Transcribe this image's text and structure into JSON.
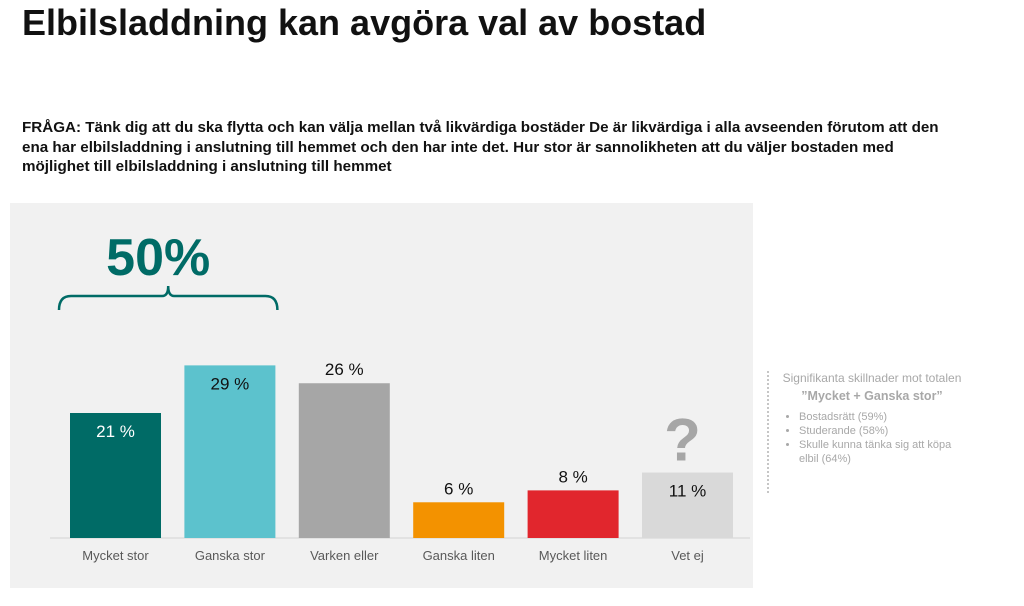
{
  "title": "Elbilsladdning kan avgöra val av bostad",
  "question": "FRÅGA: Tänk dig att du ska flytta och kan välja mellan två likvärdiga bostäder De är likvärdiga i alla avseenden förutom att den ena har elbilsladdning i anslutning till hemmet och den har inte det. Hur stor är sannolikheten att du väljer bostaden med möjlighet till elbilsladdning i anslutning till hemmet",
  "chart_data": {
    "type": "bar",
    "categories": [
      "Mycket stor",
      "Ganska stor",
      "Varken eller",
      "Ganska liten",
      "Mycket liten",
      "Vet ej"
    ],
    "values": [
      21,
      29,
      26,
      6,
      8,
      11
    ],
    "value_labels": [
      "21 %",
      "29 %",
      "26 %",
      "6 %",
      "8 %",
      "11 %"
    ],
    "colors": [
      "#006b66",
      "#5cc2cd",
      "#a6a6a6",
      "#f39200",
      "#e1262d",
      "#d9d9d9"
    ],
    "label_colors": [
      "#ffffff",
      "#111111",
      "#111111",
      "#111111",
      "#111111",
      "#111111"
    ],
    "ylim": [
      0,
      31
    ],
    "grid": false,
    "annotations": {
      "bracket_total": "50%",
      "bracket_color": "#006b66",
      "bracket_covers": [
        "Mycket stor",
        "Ganska stor"
      ],
      "question_mark": "?",
      "question_mark_over": "Vet ej"
    }
  },
  "side_note": {
    "heading": "Signifikanta skillnader mot totalen",
    "emphasis": "”Mycket + Ganska stor”",
    "items": [
      "Bostadsrätt (59%)",
      "Studerande (58%)",
      "Skulle kunna tänka sig att köpa elbil (64%)"
    ]
  }
}
